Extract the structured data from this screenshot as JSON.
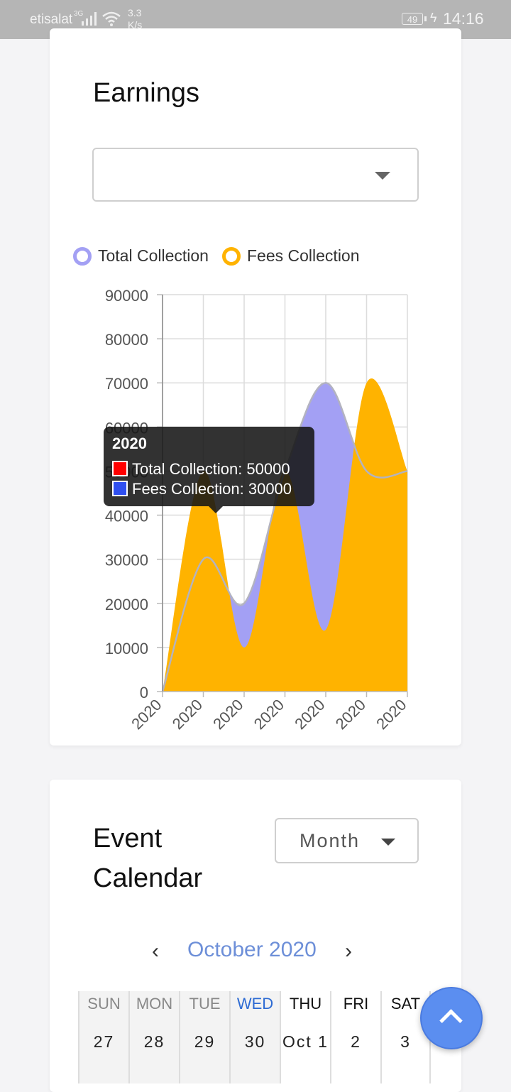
{
  "status_bar": {
    "carrier": "etisalat",
    "network": "3G",
    "speed": "3.3",
    "speed_unit": "K/s",
    "battery": "49",
    "time": "14:16"
  },
  "earnings": {
    "title": "Earnings",
    "dropdown_value": ""
  },
  "chart_data": {
    "type": "area",
    "x": [
      "2020",
      "2020",
      "2020",
      "2020",
      "2020",
      "2020",
      "2020"
    ],
    "series": [
      {
        "name": "Total Collection",
        "values": [
          0,
          30000,
          20000,
          50000,
          70000,
          50000,
          50000
        ],
        "color": "#a3a0f4"
      },
      {
        "name": "Fees Collection",
        "values": [
          0,
          50000,
          10000,
          50000,
          14000,
          70000,
          50000
        ],
        "color": "#ffb300"
      }
    ],
    "ylim": [
      0,
      90000
    ],
    "yticks": [
      "0",
      "10000",
      "20000",
      "30000",
      "40000",
      "50000",
      "60000",
      "70000",
      "80000",
      "90000"
    ],
    "grid": true,
    "legend": "top",
    "tooltip": {
      "title": "2020",
      "lines": [
        "Total Collection: 50000",
        "Fees Collection: 30000"
      ],
      "swatches": [
        "#ff0000",
        "#2f4ff0"
      ]
    }
  },
  "calendar": {
    "title_line1": "Event",
    "title_line2": "Calendar",
    "view_select": "Month",
    "month_label": "October 2020",
    "prev_icon": "‹",
    "next_icon": "›",
    "days": [
      {
        "dow": "SUN",
        "date": "27",
        "state": "past"
      },
      {
        "dow": "MON",
        "date": "28",
        "state": "past"
      },
      {
        "dow": "TUE",
        "date": "29",
        "state": "past"
      },
      {
        "dow": "WED",
        "date": "30",
        "state": "today"
      },
      {
        "dow": "THU",
        "date": "Oct 1",
        "state": "future"
      },
      {
        "dow": "FRI",
        "date": "2",
        "state": "future"
      },
      {
        "dow": "SAT",
        "date": "3",
        "state": "future"
      }
    ]
  }
}
